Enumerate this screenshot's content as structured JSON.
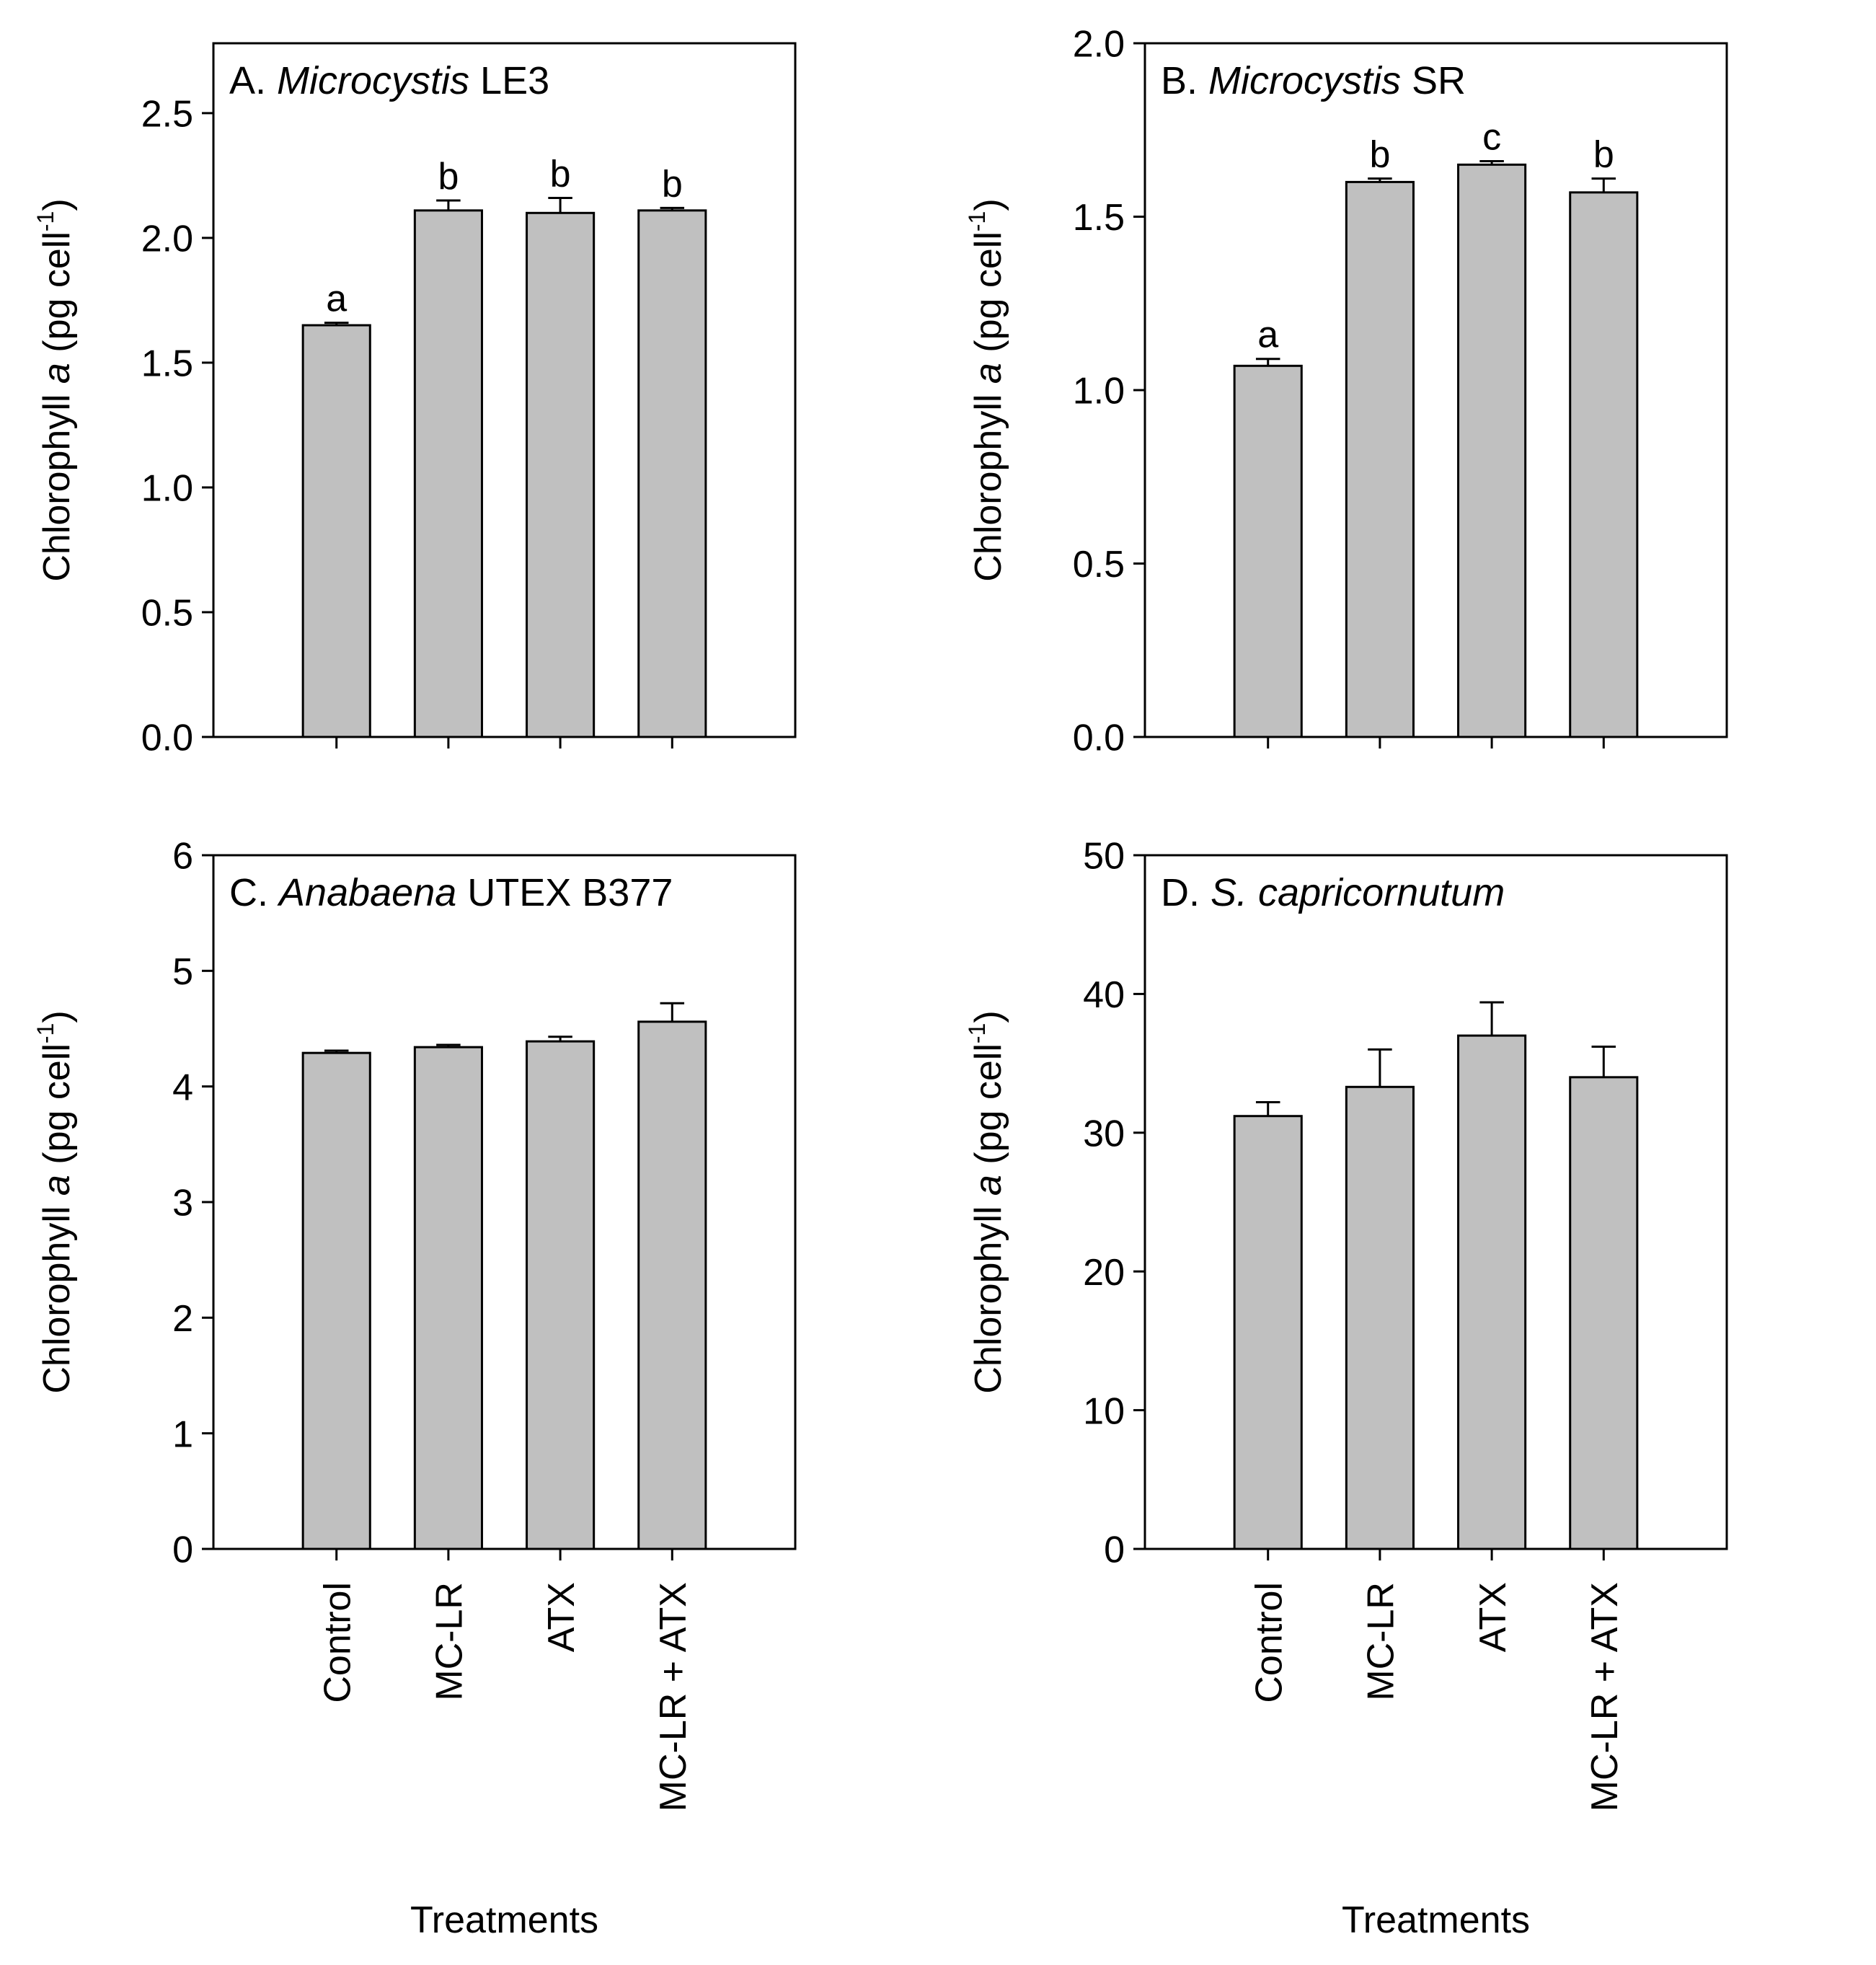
{
  "chart_data": [
    {
      "panel": "A",
      "type": "bar",
      "title_prefix": "A. ",
      "title_italic": "Microcystis",
      "title_suffix": " LE3",
      "categories": [
        "Control",
        "MC-LR",
        "ATX",
        "MC-LR + ATX"
      ],
      "values": [
        1.65,
        2.11,
        2.1,
        2.11
      ],
      "errors": [
        0.01,
        0.04,
        0.06,
        0.01
      ],
      "letters": [
        "a",
        "b",
        "b",
        "b"
      ],
      "ylim": [
        0,
        2.78
      ],
      "yticks": [
        "0.0",
        "0.5",
        "1.0",
        "1.5",
        "2.0",
        "2.5"
      ],
      "ytick_values": [
        0,
        0.5,
        1.0,
        1.5,
        2.0,
        2.5
      ],
      "ylabel": {
        "pre": "Chlorophyll ",
        "italic": "a",
        "post": " (pg cell",
        "sup": "-1",
        "close": ")"
      },
      "show_xticklabels": false,
      "xlabel": "",
      "bar_color": "#c0c0c0"
    },
    {
      "panel": "B",
      "type": "bar",
      "title_prefix": "B. ",
      "title_italic": "Microcystis",
      "title_suffix": " SR",
      "categories": [
        "Control",
        "MC-LR",
        "ATX",
        "MC-LR + ATX"
      ],
      "values": [
        1.07,
        1.6,
        1.65,
        1.57
      ],
      "errors": [
        0.02,
        0.01,
        0.01,
        0.04
      ],
      "letters": [
        "a",
        "b",
        "c",
        "b"
      ],
      "ylim": [
        0,
        2.0
      ],
      "yticks": [
        "0.0",
        "0.5",
        "1.0",
        "1.5",
        "2.0"
      ],
      "ytick_values": [
        0,
        0.5,
        1.0,
        1.5,
        2.0
      ],
      "ylabel": {
        "pre": "Chlorophyll ",
        "italic": "a",
        "post": " (pg cell",
        "sup": "-1",
        "close": ")"
      },
      "show_xticklabels": false,
      "xlabel": "",
      "bar_color": "#c0c0c0"
    },
    {
      "panel": "C",
      "type": "bar",
      "title_prefix": "C. ",
      "title_italic": "Anabaena",
      "title_suffix": " UTEX B377",
      "categories": [
        "Control",
        "MC-LR",
        "ATX",
        "MC-LR + ATX"
      ],
      "values": [
        4.29,
        4.34,
        4.39,
        4.56
      ],
      "errors": [
        0.02,
        0.02,
        0.04,
        0.16
      ],
      "letters": [
        "",
        "",
        "",
        ""
      ],
      "ylim": [
        0,
        6
      ],
      "yticks": [
        "0",
        "1",
        "2",
        "3",
        "4",
        "5",
        "6"
      ],
      "ytick_values": [
        0,
        1,
        2,
        3,
        4,
        5,
        6
      ],
      "ylabel": {
        "pre": "Chlorophyll ",
        "italic": "a",
        "post": " (pg cell",
        "sup": "-1",
        "close": ")"
      },
      "show_xticklabels": true,
      "xlabel": "Treatments",
      "bar_color": "#c0c0c0"
    },
    {
      "panel": "D",
      "type": "bar",
      "title_prefix": "D. ",
      "title_italic": "S. capricornutum",
      "title_suffix": "",
      "categories": [
        "Control",
        "MC-LR",
        "ATX",
        "MC-LR + ATX"
      ],
      "values": [
        31.2,
        33.3,
        37.0,
        34.0
      ],
      "errors": [
        1.0,
        2.7,
        2.4,
        2.2
      ],
      "letters": [
        "",
        "",
        "",
        ""
      ],
      "ylim": [
        0,
        50
      ],
      "yticks": [
        "0",
        "10",
        "20",
        "30",
        "40",
        "50"
      ],
      "ytick_values": [
        0,
        10,
        20,
        30,
        40,
        50
      ],
      "ylabel": {
        "pre": "Chlorophyll ",
        "italic": "a",
        "post": " (pg cell",
        "sup": "-1",
        "close": ")"
      },
      "show_xticklabels": true,
      "xlabel": "Treatments",
      "bar_color": "#c0c0c0"
    }
  ]
}
